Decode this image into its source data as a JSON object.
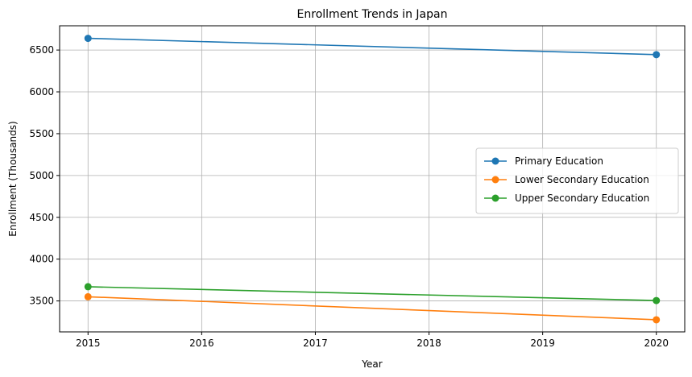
{
  "chart_data": {
    "type": "line",
    "title": "Enrollment Trends in Japan",
    "xlabel": "Year",
    "ylabel": "Enrollment (Thousands)",
    "x": [
      2015,
      2020
    ],
    "xticks": [
      2015,
      2016,
      2017,
      2018,
      2019,
      2020
    ],
    "yticks": [
      3500,
      4000,
      4500,
      5000,
      5500,
      6000,
      6500
    ],
    "xlim": [
      2014.75,
      2020.25
    ],
    "ylim": [
      3130,
      6790
    ],
    "grid": true,
    "legend_position": "center-right",
    "series": [
      {
        "name": "Primary Education",
        "color": "#1f77b4",
        "values": [
          6640,
          6445
        ]
      },
      {
        "name": "Lower Secondary Education",
        "color": "#ff7f0e",
        "values": [
          3550,
          3275
        ]
      },
      {
        "name": "Upper Secondary Education",
        "color": "#2ca02c",
        "values": [
          3670,
          3505
        ]
      }
    ]
  }
}
